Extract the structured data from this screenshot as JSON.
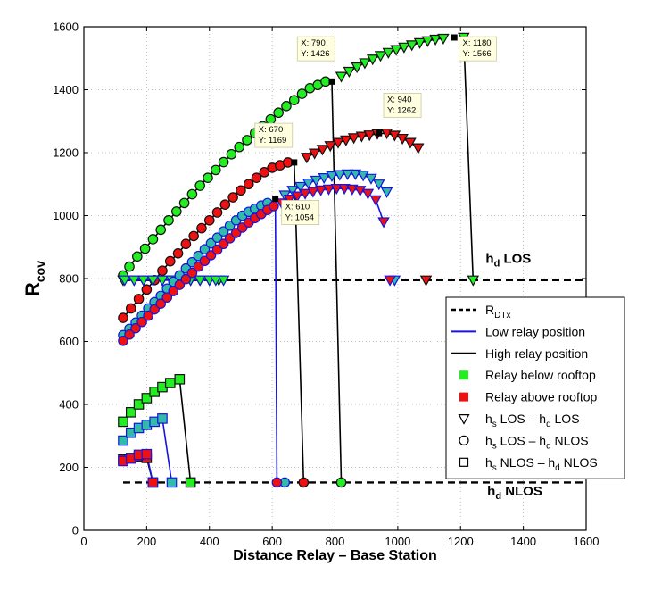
{
  "chart_data": {
    "type": "line",
    "xlabel": "Distance Relay – Base Station",
    "ylabel": {
      "main": "R",
      "sub": "cov"
    },
    "xlim": [
      0,
      1600
    ],
    "ylim": [
      0,
      1600
    ],
    "xticks": [
      0,
      200,
      400,
      600,
      800,
      1000,
      1200,
      1400,
      1600
    ],
    "yticks": [
      0,
      200,
      400,
      600,
      800,
      1000,
      1200,
      1400,
      1600
    ],
    "grid": true,
    "colors": {
      "below": "#22ee22",
      "above": "#ee1111",
      "low_line": "#1515dd",
      "high_line": "#000000",
      "mixed_fill": "#33bbaa",
      "mixed_edge": "#1515dd",
      "dark_edge": "#111111",
      "tip_bg": "#ffffe0"
    },
    "reference_lines": [
      {
        "name": "h_d LOS",
        "y": 795,
        "label_main": "h",
        "label_sub": "d",
        "label_tail": " LOS",
        "label_x": 1280,
        "label_y": 850
      },
      {
        "name": "h_d NLOS",
        "y": 152,
        "label_main": "h",
        "label_sub": "d",
        "label_tail": " NLOS",
        "label_x": 1285,
        "label_y": 110
      }
    ],
    "series": [
      {
        "name": "High relay, rooftop below, hs LOS - hd LOS",
        "line": "high",
        "fill": "below",
        "edge": "dark",
        "marker": "triangle",
        "x": [
          125,
          160,
          190,
          220,
          250,
          280,
          310,
          340,
          370,
          400,
          430
        ],
        "y": [
          795,
          795,
          795,
          795,
          795,
          795,
          795,
          795,
          795,
          795,
          795
        ]
      },
      {
        "name": "High relay, rooftop below, hs LOS - hd NLOS",
        "line": "high",
        "fill": "below",
        "edge": "dark",
        "marker": "circle",
        "x": [
          125,
          145,
          170,
          195,
          220,
          245,
          270,
          295,
          320,
          345,
          370,
          395,
          420,
          445,
          470,
          495,
          520,
          545,
          570,
          595,
          620,
          645,
          670,
          695,
          720,
          745,
          770
        ],
        "y": [
          810,
          838,
          870,
          895,
          925,
          955,
          985,
          1013,
          1040,
          1068,
          1095,
          1120,
          1145,
          1170,
          1195,
          1218,
          1240,
          1262,
          1284,
          1306,
          1327,
          1348,
          1367,
          1387,
          1405,
          1415,
          1426
        ]
      },
      {
        "name": "High relay, rooftop below, hs LOS - hd LOS (upper)",
        "line": "high",
        "fill": "below",
        "edge": "dark",
        "marker": "triangle",
        "x": [
          820,
          845,
          870,
          895,
          920,
          945,
          970,
          995,
          1020,
          1045,
          1070,
          1095,
          1120,
          1145
        ],
        "y": [
          1442,
          1458,
          1472,
          1485,
          1497,
          1508,
          1518,
          1527,
          1535,
          1542,
          1549,
          1555,
          1560,
          1563
        ]
      },
      {
        "name": "High relay, rooftop below, drop to hd LOS",
        "line": "high",
        "fill": "below",
        "edge": "dark",
        "marker": "triangle",
        "x": [
          1210,
          1240
        ],
        "y": [
          1566,
          795
        ]
      },
      {
        "name": "High relay, rooftop below, drop from circle curve",
        "line": "high",
        "fill": "below",
        "edge": "dark",
        "marker": "circle",
        "x": [
          820
        ],
        "y": [
          152
        ]
      },
      {
        "name": "High relay, rooftop above, hs LOS - hd NLOS",
        "line": "high",
        "fill": "above",
        "edge": "dark",
        "marker": "circle",
        "x": [
          125,
          150,
          175,
          200,
          225,
          250,
          275,
          300,
          325,
          350,
          375,
          400,
          425,
          450,
          475,
          500,
          525,
          550,
          575,
          600,
          625,
          650
        ],
        "y": [
          675,
          705,
          735,
          765,
          795,
          825,
          855,
          880,
          910,
          935,
          960,
          985,
          1010,
          1035,
          1058,
          1080,
          1100,
          1120,
          1138,
          1152,
          1160,
          1169
        ]
      },
      {
        "name": "High relay, rooftop above, hs LOS - hd LOS (upper)",
        "line": "high",
        "fill": "above",
        "edge": "dark",
        "marker": "triangle",
        "x": [
          710,
          735,
          760,
          785,
          810,
          835,
          860,
          885,
          910,
          935,
          965,
          990,
          1015,
          1040,
          1065
        ],
        "y": [
          1185,
          1198,
          1210,
          1222,
          1232,
          1240,
          1247,
          1252,
          1256,
          1260,
          1262,
          1255,
          1245,
          1232,
          1215
        ]
      },
      {
        "name": "High relay, rooftop above, drop to hd LOS",
        "line": "high",
        "fill": "above",
        "edge": "dark",
        "marker": "triangle",
        "x": [
          1090
        ],
        "y": [
          795
        ]
      },
      {
        "name": "High relay, rooftop above, drop to hd NLOS",
        "line": "high",
        "fill": "above",
        "edge": "dark",
        "marker": "circle",
        "x": [
          700
        ],
        "y": [
          152
        ]
      },
      {
        "name": "Low relay, rooftop below, hs LOS - hd LOS (flat)",
        "line": "low",
        "fill": "below",
        "edge": "blue",
        "marker": "triangle",
        "x": [
          130,
          160,
          190,
          220,
          250,
          280,
          310,
          340,
          370,
          400
        ],
        "y": [
          795,
          795,
          795,
          795,
          795,
          795,
          795,
          795,
          795,
          795
        ]
      },
      {
        "name": "Low relay, rooftop below, hs LOS - hd NLOS",
        "line": "low",
        "fill": "mixed",
        "edge": "blue",
        "marker": "circle",
        "x": [
          125,
          145,
          165,
          185,
          205,
          225,
          245,
          265,
          285,
          305,
          325,
          345,
          365,
          385,
          405,
          425,
          445,
          465,
          485,
          505,
          525,
          545,
          565,
          585
        ],
        "y": [
          620,
          640,
          660,
          682,
          705,
          725,
          745,
          768,
          790,
          810,
          832,
          852,
          872,
          893,
          912,
          930,
          950,
          968,
          985,
          1000,
          1012,
          1022,
          1032,
          1040
        ]
      },
      {
        "name": "Low relay, rooftop below, hs LOS - hd LOS (upper)",
        "line": "low",
        "fill": "mixed",
        "edge": "blue",
        "marker": "triangle",
        "x": [
          640,
          665,
          690,
          715,
          740,
          765,
          790,
          815,
          840,
          865,
          890,
          915,
          940,
          965
        ],
        "y": [
          1065,
          1080,
          1092,
          1103,
          1112,
          1120,
          1126,
          1130,
          1132,
          1132,
          1128,
          1118,
          1100,
          1075
        ]
      },
      {
        "name": "Low relay, rooftop below, drop to hd LOS",
        "line": "low",
        "fill": "mixed",
        "edge": "blue",
        "marker": "triangle",
        "x": [
          990
        ],
        "y": [
          795
        ]
      },
      {
        "name": "Low relay, rooftop below, drop to hd NLOS",
        "line": "low",
        "fill": "mixed",
        "edge": "blue",
        "marker": "circle",
        "x": [
          640
        ],
        "y": [
          152
        ]
      },
      {
        "name": "Low relay, rooftop above, hs LOS - hd NLOS",
        "line": "low",
        "fill": "above",
        "edge": "blue",
        "marker": "circle",
        "x": [
          125,
          145,
          165,
          185,
          205,
          225,
          245,
          265,
          285,
          305,
          325,
          345,
          365,
          385,
          405,
          425,
          445,
          465,
          485,
          505,
          525,
          545,
          565,
          585,
          605
        ],
        "y": [
          602,
          622,
          642,
          662,
          682,
          702,
          720,
          740,
          760,
          780,
          798,
          818,
          838,
          856,
          874,
          892,
          910,
          928,
          945,
          962,
          978,
          992,
          1005,
          1018,
          1030
        ]
      },
      {
        "name": "Low relay, rooftop above, hs LOS - hd LOS (upper)",
        "line": "low",
        "fill": "above",
        "edge": "blue",
        "marker": "triangle",
        "x": [
          630,
          655,
          680,
          705,
          730,
          755,
          780,
          805,
          830,
          855,
          880,
          905,
          930,
          955
        ],
        "y": [
          1040,
          1052,
          1062,
          1070,
          1076,
          1081,
          1084,
          1086,
          1086,
          1084,
          1080,
          1070,
          1050,
          980
        ]
      },
      {
        "name": "Low relay, rooftop above, drop to hd LOS",
        "line": "low",
        "fill": "above",
        "edge": "blue",
        "marker": "triangle",
        "x": [
          975
        ],
        "y": [
          795
        ]
      },
      {
        "name": "Low relay, rooftop above, drop to hd NLOS",
        "line": "low",
        "fill": "above",
        "edge": "blue",
        "marker": "circle",
        "x": [
          615
        ],
        "y": [
          152
        ]
      },
      {
        "name": "Low relay, rooftop below, flat segment at 795",
        "line": "low",
        "fill": "below",
        "edge": "blue",
        "marker": "triangle",
        "x": [
          420,
          445
        ],
        "y": [
          795,
          795
        ]
      },
      {
        "name": "High relay, rooftop below, hs NLOS - hd NLOS",
        "line": "high",
        "fill": "below",
        "edge": "dark",
        "marker": "square",
        "x": [
          125,
          150,
          175,
          200,
          225,
          250,
          275,
          305,
          340
        ],
        "y": [
          345,
          375,
          400,
          420,
          440,
          455,
          468,
          480,
          152
        ]
      },
      {
        "name": "Low relay, rooftop below, hs NLOS - hd NLOS",
        "line": "low",
        "fill": "mixed",
        "edge": "blue",
        "marker": "square",
        "x": [
          125,
          150,
          175,
          200,
          225,
          250,
          280
        ],
        "y": [
          285,
          310,
          325,
          335,
          345,
          355,
          152
        ]
      },
      {
        "name": "High relay, rooftop above, hs NLOS - hd NLOS",
        "line": "high",
        "fill": "above",
        "edge": "dark",
        "marker": "square",
        "x": [
          125,
          150,
          175,
          200,
          220
        ],
        "y": [
          225,
          230,
          235,
          230,
          152
        ]
      },
      {
        "name": "Low relay, rooftop above, hs NLOS - hd NLOS",
        "line": "low",
        "fill": "above",
        "edge": "blue",
        "marker": "square",
        "x": [
          125,
          150,
          175,
          200,
          220
        ],
        "y": [
          220,
          228,
          240,
          242,
          152
        ]
      }
    ],
    "dark_markers": [
      {
        "x": 670,
        "y": 1169
      },
      {
        "x": 610,
        "y": 1054
      },
      {
        "x": 790,
        "y": 1426
      },
      {
        "x": 940,
        "y": 1262
      },
      {
        "x": 1180,
        "y": 1566
      }
    ],
    "drop_lines": [
      {
        "from": [
          670,
          1169
        ],
        "to": [
          700,
          152
        ],
        "color": "high_line"
      },
      {
        "from": [
          610,
          1054
        ],
        "to": [
          615,
          152
        ],
        "color": "low_line"
      },
      {
        "from": [
          790,
          1426
        ],
        "to": [
          820,
          152
        ],
        "color": "high_line"
      }
    ],
    "tooltips": [
      {
        "name": "tip-790",
        "label": [
          "X: 790",
          "Y: 1426"
        ],
        "x": 680,
        "y": 1540
      },
      {
        "name": "tip-670",
        "label": [
          "X: 670",
          "Y: 1169"
        ],
        "x": 545,
        "y": 1265
      },
      {
        "name": "tip-610",
        "label": [
          "X: 610",
          "Y: 1054"
        ],
        "x": 630,
        "y": 1020
      },
      {
        "name": "tip-940",
        "label": [
          "X: 940",
          "Y: 1262"
        ],
        "x": 955,
        "y": 1360
      },
      {
        "name": "tip-1180",
        "label": [
          "X: 1180",
          "Y: 1566"
        ],
        "x": 1195,
        "y": 1540
      }
    ],
    "legend": [
      {
        "name": "legend-rdtx",
        "text_main": "R",
        "text_sub": "DTx",
        "text_tail": "",
        "symbol": "dashed"
      },
      {
        "name": "legend-low-relay",
        "text_main": "Low relay position",
        "text_sub": "",
        "text_tail": "",
        "symbol": "line-blue"
      },
      {
        "name": "legend-high-relay",
        "text_main": "High relay position",
        "text_sub": "",
        "text_tail": "",
        "symbol": "line-black"
      },
      {
        "name": "legend-below-rooftop",
        "text_main": "Relay below rooftop",
        "text_sub": "",
        "text_tail": "",
        "symbol": "square-green"
      },
      {
        "name": "legend-above-rooftop",
        "text_main": "Relay above rooftop",
        "text_sub": "",
        "text_tail": "",
        "symbol": "square-red"
      },
      {
        "name": "legend-los-los",
        "text_main": "h",
        "text_sub": "s",
        "text_tail": " LOS – h",
        "text_sub2": "d",
        "text_tail2": " LOS",
        "symbol": "triangle-open"
      },
      {
        "name": "legend-los-nlos",
        "text_main": "h",
        "text_sub": "s",
        "text_tail": " LOS – h",
        "text_sub2": "d",
        "text_tail2": " NLOS",
        "symbol": "circle-open"
      },
      {
        "name": "legend-nlos-nlos",
        "text_main": "h",
        "text_sub": "s",
        "text_tail": " NLOS – h",
        "text_sub2": "d",
        "text_tail2": " NLOS",
        "symbol": "square-open"
      }
    ]
  }
}
